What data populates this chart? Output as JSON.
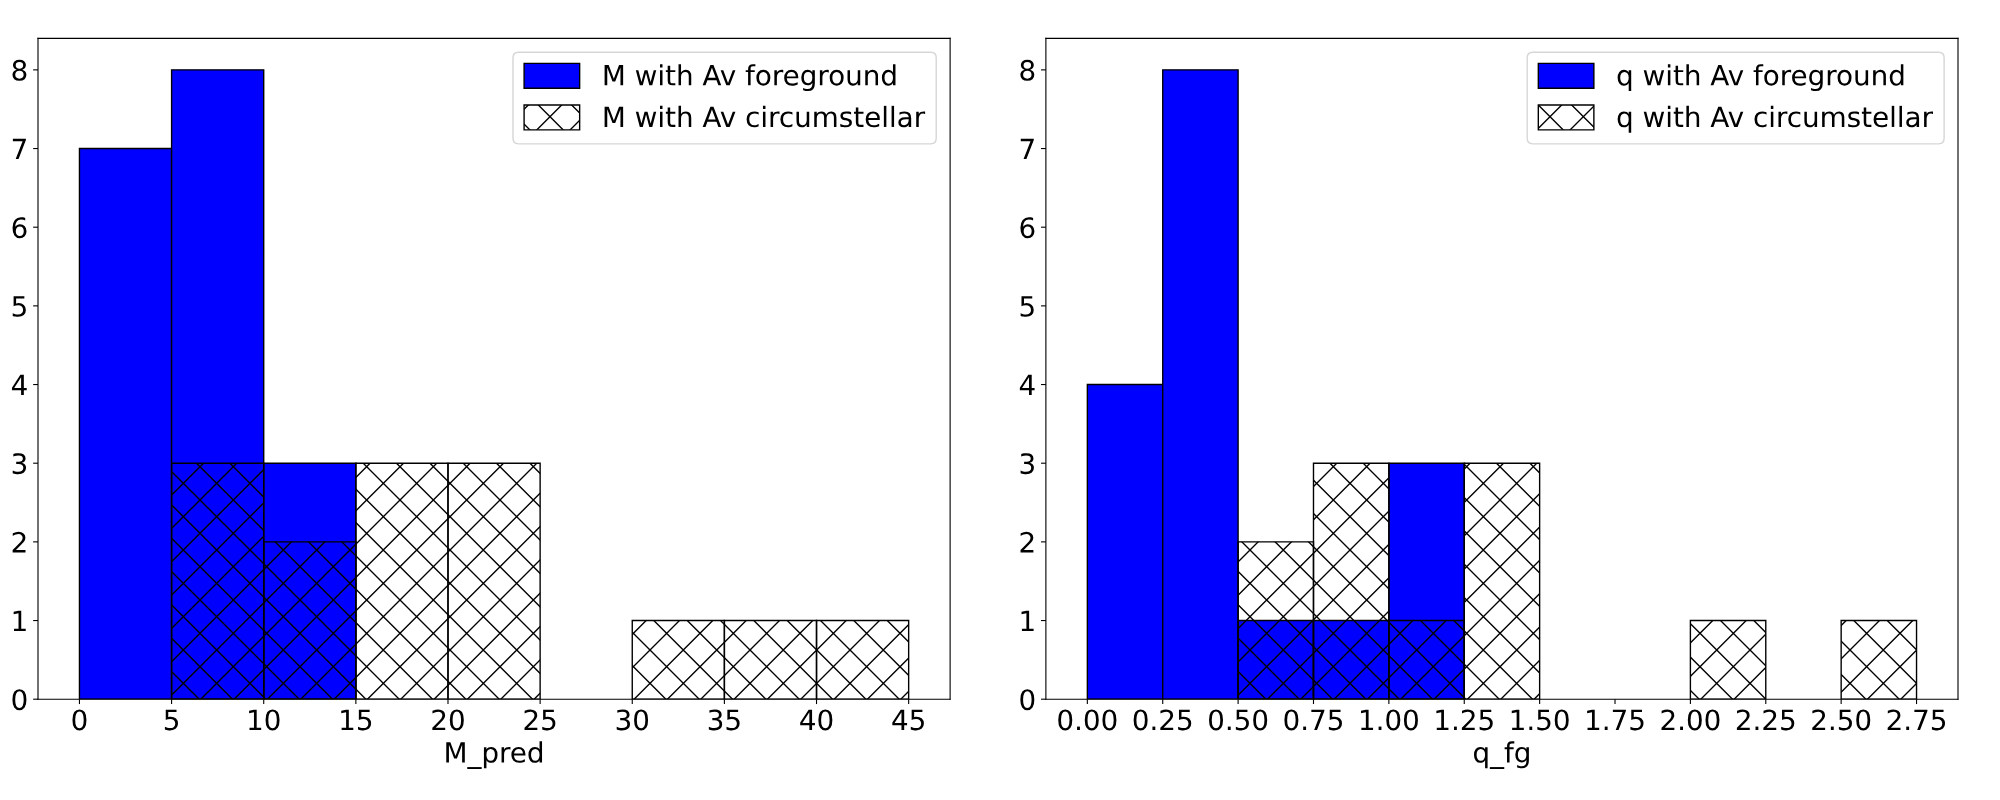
{
  "chart_data": [
    {
      "type": "histogram",
      "xlabel": "M_pred",
      "bins": [
        0,
        5,
        10,
        15,
        20,
        25,
        30,
        35,
        40,
        45
      ],
      "series": [
        {
          "name": "M with Av foreground",
          "color": "#0000ff",
          "values": [
            7,
            8,
            3,
            0,
            0,
            0,
            0,
            0,
            0
          ]
        },
        {
          "name": "M with Av circumstellar",
          "color": "#000000",
          "values": [
            0,
            3,
            2,
            3,
            3,
            0,
            1,
            1,
            1
          ]
        }
      ],
      "xlim": [
        -2.25,
        47.25
      ],
      "ylim": [
        0,
        8.4
      ],
      "xticks": [
        0,
        5,
        10,
        15,
        20,
        25,
        30,
        35,
        40,
        45
      ],
      "yticks": [
        0,
        1,
        2,
        3,
        4,
        5,
        6,
        7,
        8
      ],
      "legend": "top right",
      "grid": false
    },
    {
      "type": "histogram",
      "xlabel": "q_fg",
      "bins": [
        0,
        0.25,
        0.5,
        0.75,
        1.0,
        1.25,
        1.5,
        1.75,
        2.0,
        2.25,
        2.5,
        2.75
      ],
      "series": [
        {
          "name": "q with Av foreground",
          "color": "#0000ff",
          "values": [
            4,
            8,
            1,
            1,
            3,
            0,
            0,
            0,
            0,
            0,
            0
          ]
        },
        {
          "name": "q with Av circumstellar",
          "color": "#000000",
          "values": [
            0,
            0,
            2,
            3,
            1,
            3,
            0,
            0,
            1,
            0,
            1
          ]
        }
      ],
      "xlim": [
        -0.1375,
        2.8875
      ],
      "ylim": [
        0,
        8.4
      ],
      "xticks": [
        {
          "value": 0,
          "label": "0.00"
        },
        {
          "value": 0.25,
          "label": "0.25"
        },
        {
          "value": 0.5,
          "label": "0.50"
        },
        {
          "value": 0.75,
          "label": "0.75"
        },
        {
          "value": 1.0,
          "label": "1.00"
        },
        {
          "value": 1.25,
          "label": "1.25"
        },
        {
          "value": 1.5,
          "label": "1.50"
        },
        {
          "value": 1.75,
          "label": "1.75"
        },
        {
          "value": 2.0,
          "label": "2.00"
        },
        {
          "value": 2.25,
          "label": "2.25"
        },
        {
          "value": 2.5,
          "label": "2.50"
        },
        {
          "value": 2.75,
          "label": "2.75"
        }
      ],
      "yticks": [
        0,
        1,
        2,
        3,
        4,
        5,
        6,
        7,
        8
      ],
      "legend": "top right",
      "grid": false
    }
  ]
}
